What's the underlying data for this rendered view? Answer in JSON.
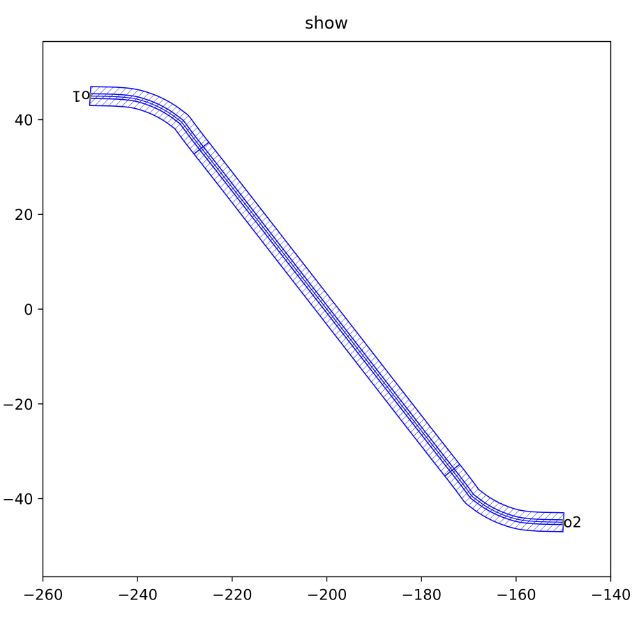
{
  "chart_data": {
    "type": "line",
    "title": "show",
    "xlabel": "",
    "ylabel": "",
    "xlim": [
      -260,
      -140
    ],
    "ylim": [
      -56.5,
      56.5
    ],
    "x_ticks": [
      -260,
      -240,
      -220,
      -200,
      -180,
      -160,
      -140
    ],
    "x_tick_labels": [
      "−260",
      "−240",
      "−220",
      "−200",
      "−180",
      "−160",
      "−140"
    ],
    "y_ticks": [
      40,
      20,
      0,
      -20,
      -40
    ],
    "y_tick_labels": [
      "40",
      "20",
      "0",
      "−20",
      "−40"
    ],
    "grid": false,
    "legend": "none",
    "colors": {
      "outline": "#0000ff",
      "hatch": "#0000ff",
      "port": "#808080",
      "axes": "#000000"
    },
    "series": [
      {
        "points": [
          [
            -250,
            45
          ],
          [
            -240,
            44.3
          ],
          [
            -232,
            40.5
          ],
          [
            -226.5,
            34
          ],
          [
            -200,
            0
          ],
          [
            -173.5,
            -34
          ],
          [
            -168,
            -40.5
          ],
          [
            -160,
            -44.3
          ],
          [
            -150,
            -45
          ]
        ]
      }
    ],
    "waveguide": {
      "core_width": 1,
      "cladding_width": 4,
      "section_breaks_x": [
        -226.5,
        -173.5
      ]
    },
    "annotations": [
      {
        "text": "o1",
        "x": -250,
        "y": 45,
        "rotation": 180
      },
      {
        "text": "o2",
        "x": -150,
        "y": -45,
        "rotation": 0
      }
    ]
  }
}
